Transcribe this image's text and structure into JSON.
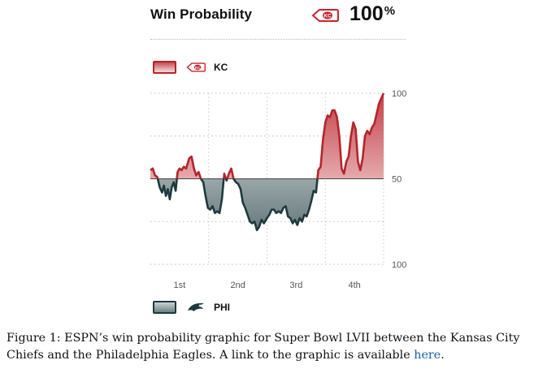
{
  "header": {
    "title": "Win Probability",
    "leader_team": "KC",
    "leader_value": "100",
    "leader_unit": "%",
    "leader_logo": "chiefs-arrowhead-icon"
  },
  "legend": [
    {
      "team": "KC",
      "color": "#b5242b",
      "logo": "chiefs-arrowhead-icon"
    },
    {
      "team": "PHI",
      "color": "#1e3a3e",
      "logo": "eagles-head-icon"
    }
  ],
  "caption": {
    "text": "Figure 1: ESPN’s win probability graphic for Super Bowl LVII between the Kansas City Chiefs and the Philadelphia Eagles. A link to the graphic is available ",
    "link": "here",
    "end": "."
  },
  "chart_data": {
    "type": "area",
    "x_categories": [
      "1st",
      "2nd",
      "3rd",
      "4th"
    ],
    "y_tick_labels": [
      "100",
      "50",
      "100"
    ],
    "y_range": [
      0,
      100
    ],
    "baseline": 50,
    "grid": true,
    "series": [
      {
        "name": "KC",
        "color": "#b5242b"
      },
      {
        "name": "PHI",
        "color": "#1e3a3e"
      }
    ],
    "x_range": [
      0,
      60
    ],
    "points": [
      [
        0,
        55
      ],
      [
        0.6,
        56
      ],
      [
        1.2,
        52
      ],
      [
        1.8,
        51
      ],
      [
        2.4,
        45
      ],
      [
        3,
        42
      ],
      [
        3.5,
        46
      ],
      [
        4,
        40
      ],
      [
        4.5,
        44
      ],
      [
        5,
        38
      ],
      [
        5.5,
        45
      ],
      [
        6,
        48
      ],
      [
        6.5,
        43
      ],
      [
        7,
        54
      ],
      [
        7.5,
        56
      ],
      [
        8,
        55
      ],
      [
        8.6,
        57
      ],
      [
        9.2,
        56
      ],
      [
        10,
        62
      ],
      [
        10.6,
        63
      ],
      [
        11.2,
        56
      ],
      [
        11.8,
        52
      ],
      [
        12.4,
        54
      ],
      [
        13,
        50
      ],
      [
        13.6,
        48
      ],
      [
        14.2,
        40
      ],
      [
        14.8,
        33
      ],
      [
        15.4,
        32
      ],
      [
        16,
        34
      ],
      [
        16.6,
        30
      ],
      [
        17.2,
        31
      ],
      [
        17.8,
        30
      ],
      [
        18.4,
        38
      ],
      [
        19,
        53
      ],
      [
        19.6,
        49
      ],
      [
        20.2,
        53
      ],
      [
        20.8,
        56
      ],
      [
        21.4,
        50
      ],
      [
        22,
        48
      ],
      [
        22.6,
        47
      ],
      [
        23.2,
        44
      ],
      [
        23.8,
        36
      ],
      [
        24.4,
        33
      ],
      [
        25,
        29
      ],
      [
        25.6,
        25
      ],
      [
        26.2,
        24
      ],
      [
        26.8,
        25
      ],
      [
        27.4,
        20
      ],
      [
        28,
        22
      ],
      [
        28.6,
        26
      ],
      [
        29.2,
        24
      ],
      [
        30,
        27
      ],
      [
        30.6,
        29
      ],
      [
        31.2,
        32
      ],
      [
        31.8,
        32
      ],
      [
        32.4,
        30
      ],
      [
        33,
        31
      ],
      [
        33.6,
        30
      ],
      [
        34.2,
        33
      ],
      [
        34.8,
        34
      ],
      [
        35.4,
        28
      ],
      [
        36,
        27
      ],
      [
        36.6,
        24
      ],
      [
        37.2,
        26
      ],
      [
        37.8,
        23
      ],
      [
        38.4,
        27
      ],
      [
        39,
        25
      ],
      [
        39.6,
        29
      ],
      [
        40.2,
        28
      ],
      [
        40.8,
        32
      ],
      [
        41.4,
        37
      ],
      [
        42,
        43
      ],
      [
        42.6,
        42
      ],
      [
        43.2,
        55
      ],
      [
        43.8,
        57
      ],
      [
        44.4,
        73
      ],
      [
        45,
        83
      ],
      [
        45.6,
        87
      ],
      [
        46.2,
        86
      ],
      [
        46.8,
        90
      ],
      [
        47.4,
        90
      ],
      [
        48,
        86
      ],
      [
        48.6,
        75
      ],
      [
        49.2,
        56
      ],
      [
        49.8,
        53
      ],
      [
        50.4,
        60
      ],
      [
        51,
        63
      ],
      [
        51.6,
        75
      ],
      [
        52.2,
        83
      ],
      [
        52.8,
        79
      ],
      [
        53.4,
        60
      ],
      [
        54,
        55
      ],
      [
        54.6,
        62
      ],
      [
        55.2,
        75
      ],
      [
        55.8,
        78
      ],
      [
        56.4,
        76
      ],
      [
        57,
        80
      ],
      [
        57.6,
        82
      ],
      [
        58.2,
        88
      ],
      [
        58.8,
        94
      ],
      [
        59.4,
        97
      ],
      [
        60,
        100
      ]
    ]
  }
}
